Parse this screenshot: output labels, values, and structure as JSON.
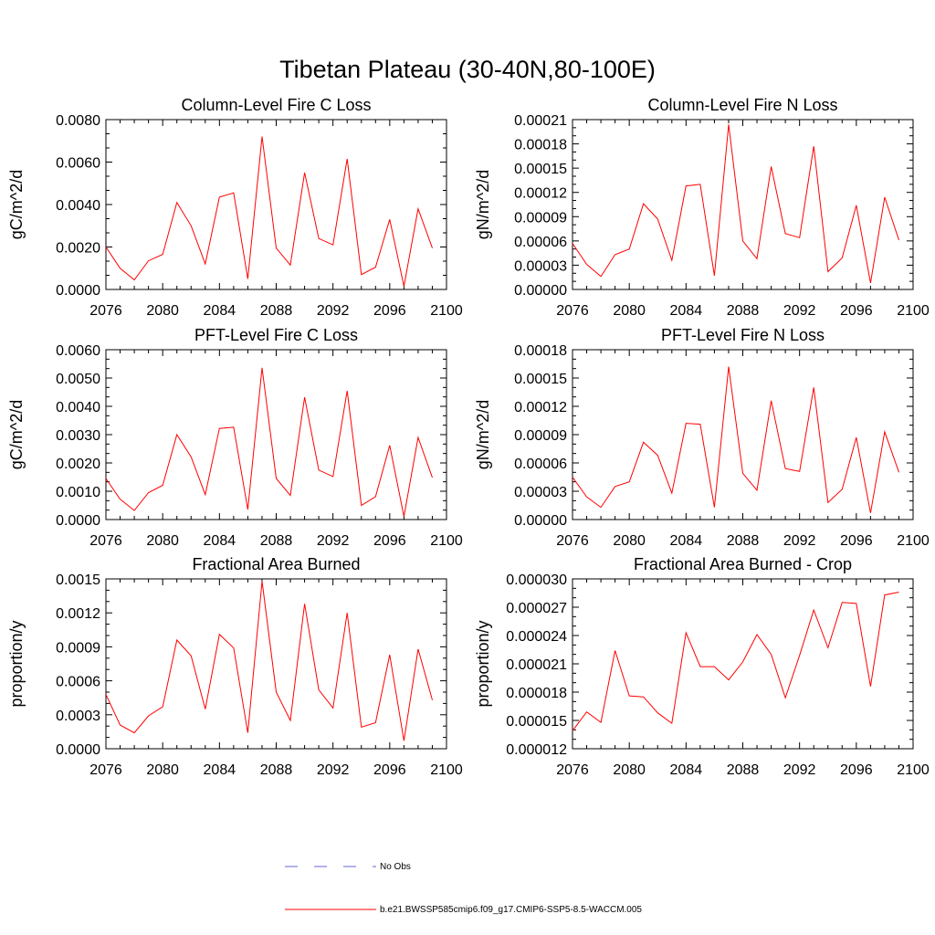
{
  "page_title": "Tibetan Plateau (30-40N,80-100E)",
  "legend": {
    "entries": [
      {
        "label": "No Obs",
        "color": "#6666cc",
        "style": "dashed"
      },
      {
        "label": "b.e21.BWSSP585cmip6.f09_g17.CMIP6-SSP5-8.5-WACCM.005",
        "color": "#ff0000",
        "style": "solid"
      }
    ]
  },
  "chart_data": [
    {
      "type": "line",
      "title": "Column-Level Fire C Loss",
      "xlabel": "",
      "ylabel": "gC/m^2/d",
      "xlim": [
        2076,
        2100
      ],
      "ylim": [
        0,
        0.008
      ],
      "x_ticks": [
        "2076",
        "2080",
        "2084",
        "2088",
        "2092",
        "2096",
        "2100"
      ],
      "y_ticks": [
        "0.0000",
        "0.0020",
        "0.0040",
        "0.0060",
        "0.0080"
      ],
      "x": [
        2076,
        2077,
        2078,
        2079,
        2080,
        2081,
        2082,
        2083,
        2084,
        2085,
        2086,
        2087,
        2088,
        2089,
        2090,
        2091,
        2092,
        2093,
        2094,
        2095,
        2096,
        2097,
        2098,
        2099
      ],
      "series": [
        {
          "color": "#ff0000",
          "values": [
            0.002,
            0.001,
            0.00045,
            0.00135,
            0.00165,
            0.0041,
            0.003,
            0.0012,
            0.00435,
            0.00455,
            0.0005,
            0.0072,
            0.00195,
            0.00115,
            0.0055,
            0.0024,
            0.0021,
            0.00615,
            0.0007,
            0.00105,
            0.0033,
            0.00015,
            0.0038,
            0.00195
          ]
        }
      ]
    },
    {
      "type": "line",
      "title": "Column-Level Fire N Loss",
      "xlabel": "",
      "ylabel": "gN/m^2/d",
      "xlim": [
        2076,
        2100
      ],
      "ylim": [
        0,
        0.00021
      ],
      "x_ticks": [
        "2076",
        "2080",
        "2084",
        "2088",
        "2092",
        "2096",
        "2100"
      ],
      "y_ticks": [
        "0.00000",
        "0.00003",
        "0.00006",
        "0.00009",
        "0.00012",
        "0.00015",
        "0.00018",
        "0.00021"
      ],
      "x": [
        2076,
        2077,
        2078,
        2079,
        2080,
        2081,
        2082,
        2083,
        2084,
        2085,
        2086,
        2087,
        2088,
        2089,
        2090,
        2091,
        2092,
        2093,
        2094,
        2095,
        2096,
        2097,
        2098,
        2099
      ],
      "series": [
        {
          "color": "#ff0000",
          "values": [
            5.7e-05,
            3.1e-05,
            1.6e-05,
            4.3e-05,
            5e-05,
            0.000106,
            8.7e-05,
            3.6e-05,
            0.000128,
            0.00013,
            1.7e-05,
            0.000204,
            6e-05,
            3.8e-05,
            0.000152,
            6.9e-05,
            6.4e-05,
            0.000177,
            2.2e-05,
            3.9e-05,
            0.000104,
            8e-06,
            0.000114,
            6.1e-05
          ]
        }
      ]
    },
    {
      "type": "line",
      "title": "PFT-Level Fire C Loss",
      "xlabel": "",
      "ylabel": "gC/m^2/d",
      "xlim": [
        2076,
        2100
      ],
      "ylim": [
        0,
        0.006
      ],
      "x_ticks": [
        "2076",
        "2080",
        "2084",
        "2088",
        "2092",
        "2096",
        "2100"
      ],
      "y_ticks": [
        "0.0000",
        "0.0010",
        "0.0020",
        "0.0030",
        "0.0040",
        "0.0050",
        "0.0060"
      ],
      "x": [
        2076,
        2077,
        2078,
        2079,
        2080,
        2081,
        2082,
        2083,
        2084,
        2085,
        2086,
        2087,
        2088,
        2089,
        2090,
        2091,
        2092,
        2093,
        2094,
        2095,
        2096,
        2097,
        2098,
        2099
      ],
      "series": [
        {
          "color": "#ff0000",
          "values": [
            0.00145,
            0.00072,
            0.00032,
            0.00095,
            0.00121,
            0.003,
            0.00221,
            0.00088,
            0.00322,
            0.00326,
            0.00035,
            0.00536,
            0.00145,
            0.00085,
            0.00432,
            0.00175,
            0.00152,
            0.00455,
            0.0005,
            0.00081,
            0.00262,
            0.00011,
            0.0029,
            0.00148
          ]
        }
      ]
    },
    {
      "type": "line",
      "title": "PFT-Level Fire N Loss",
      "xlabel": "",
      "ylabel": "gN/m^2/d",
      "xlim": [
        2076,
        2100
      ],
      "ylim": [
        0,
        0.00018
      ],
      "x_ticks": [
        "2076",
        "2080",
        "2084",
        "2088",
        "2092",
        "2096",
        "2100"
      ],
      "y_ticks": [
        "0.00000",
        "0.00003",
        "0.00006",
        "0.00009",
        "0.00012",
        "0.00015",
        "0.00018"
      ],
      "x": [
        2076,
        2077,
        2078,
        2079,
        2080,
        2081,
        2082,
        2083,
        2084,
        2085,
        2086,
        2087,
        2088,
        2089,
        2090,
        2091,
        2092,
        2093,
        2094,
        2095,
        2096,
        2097,
        2098,
        2099
      ],
      "series": [
        {
          "color": "#ff0000",
          "values": [
            4.5e-05,
            2.4e-05,
            1.3e-05,
            3.5e-05,
            4e-05,
            8.2e-05,
            6.8e-05,
            2.8e-05,
            0.000102,
            0.000101,
            1.3e-05,
            0.000162,
            4.9e-05,
            3.1e-05,
            0.000126,
            5.4e-05,
            5.1e-05,
            0.00014,
            1.8e-05,
            3.2e-05,
            8.7e-05,
            7e-06,
            9.3e-05,
            5e-05
          ]
        }
      ]
    },
    {
      "type": "line",
      "title": "Fractional Area Burned",
      "xlabel": "",
      "ylabel": "proportion/y",
      "xlim": [
        2076,
        2100
      ],
      "ylim": [
        0,
        0.0015
      ],
      "x_ticks": [
        "2076",
        "2080",
        "2084",
        "2088",
        "2092",
        "2096",
        "2100"
      ],
      "y_ticks": [
        "0.0000",
        "0.0003",
        "0.0006",
        "0.0009",
        "0.0012",
        "0.0015"
      ],
      "x": [
        2076,
        2077,
        2078,
        2079,
        2080,
        2081,
        2082,
        2083,
        2084,
        2085,
        2086,
        2087,
        2088,
        2089,
        2090,
        2091,
        2092,
        2093,
        2094,
        2095,
        2096,
        2097,
        2098,
        2099
      ],
      "series": [
        {
          "color": "#ff0000",
          "values": [
            0.00048,
            0.00021,
            0.00014,
            0.00029,
            0.00037,
            0.00096,
            0.00082,
            0.00035,
            0.00101,
            0.00089,
            0.00014,
            0.00148,
            0.0005,
            0.00025,
            0.00128,
            0.00052,
            0.00036,
            0.0012,
            0.00019,
            0.00023,
            0.00083,
            7e-05,
            0.00088,
            0.00043
          ]
        }
      ]
    },
    {
      "type": "line",
      "title": "Fractional Area Burned - Crop",
      "xlabel": "",
      "ylabel": "proportion/y",
      "xlim": [
        2076,
        2100
      ],
      "ylim": [
        1.2e-05,
        3e-05
      ],
      "x_ticks": [
        "2076",
        "2080",
        "2084",
        "2088",
        "2092",
        "2096",
        "2100"
      ],
      "y_ticks": [
        "0.000012",
        "0.000015",
        "0.000018",
        "0.000021",
        "0.000024",
        "0.000027",
        "0.000030"
      ],
      "x": [
        2076,
        2077,
        2078,
        2079,
        2080,
        2081,
        2082,
        2083,
        2084,
        2085,
        2086,
        2087,
        2088,
        2089,
        2090,
        2091,
        2092,
        2093,
        2094,
        2095,
        2096,
        2097,
        2098,
        2099
      ],
      "series": [
        {
          "color": "#ff0000",
          "values": [
            1.39e-05,
            1.59e-05,
            1.48e-05,
            2.24e-05,
            1.76e-05,
            1.75e-05,
            1.58e-05,
            1.47e-05,
            2.43e-05,
            2.07e-05,
            2.07e-05,
            1.93e-05,
            2.12e-05,
            2.41e-05,
            2.2e-05,
            1.74e-05,
            2.19e-05,
            2.67e-05,
            2.27e-05,
            2.75e-05,
            2.74e-05,
            1.86e-05,
            2.83e-05,
            2.86e-05
          ]
        }
      ]
    }
  ]
}
